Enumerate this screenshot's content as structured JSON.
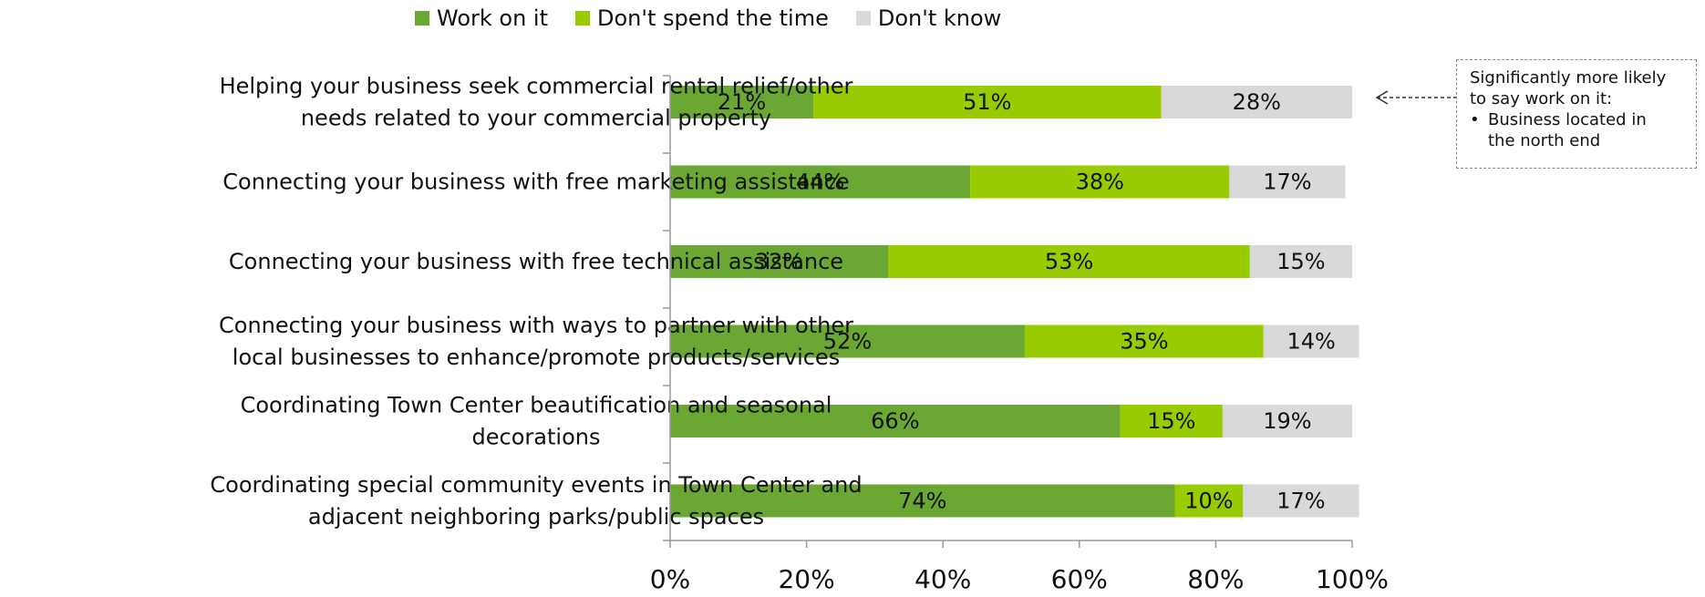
{
  "chart_data": {
    "type": "bar",
    "orientation": "horizontal",
    "stacked": true,
    "categories": [
      [
        "Helping your business seek commercial rental relief/other",
        "needs related to your commercial property"
      ],
      [
        "Connecting your business with free marketing assistance"
      ],
      [
        "Connecting your business with free technical assistance"
      ],
      [
        "Connecting your business with ways to partner with other",
        "local businesses to enhance/promote products/services"
      ],
      [
        "Coordinating Town Center beautification and seasonal",
        "decorations"
      ],
      [
        "Coordinating special community events in Town Center and",
        "adjacent neighboring parks/public spaces"
      ]
    ],
    "series": [
      {
        "name": "Work on it",
        "color": "#6aa733",
        "values": [
          21,
          44,
          32,
          52,
          66,
          74
        ],
        "labels": [
          "21%",
          "44%",
          "32%",
          "52%",
          "66%",
          "74%"
        ]
      },
      {
        "name": "Don't spend the time",
        "color": "#99cc00",
        "values": [
          51,
          38,
          53,
          35,
          15,
          10
        ],
        "labels": [
          "51%",
          "38%",
          "53%",
          "35%",
          "15%",
          "10%"
        ]
      },
      {
        "name": "Don't know",
        "color": "#d9d9d9",
        "values": [
          28,
          17,
          15,
          14,
          19,
          17
        ],
        "labels": [
          "28%",
          "17%",
          "15%",
          "14%",
          "19%",
          "17%"
        ]
      }
    ],
    "xlim": [
      0,
      100
    ],
    "xticks": [
      0,
      20,
      40,
      60,
      80,
      100
    ],
    "xtick_labels": [
      "0%",
      "20%",
      "40%",
      "60%",
      "80%",
      "100%"
    ],
    "legend_position": "top",
    "grid": false
  },
  "callout": {
    "title_lines": [
      "Significantly more likely",
      "to say work on it:"
    ],
    "bullet": "•",
    "bullet_lines": [
      "Business located in",
      "the north end"
    ]
  }
}
